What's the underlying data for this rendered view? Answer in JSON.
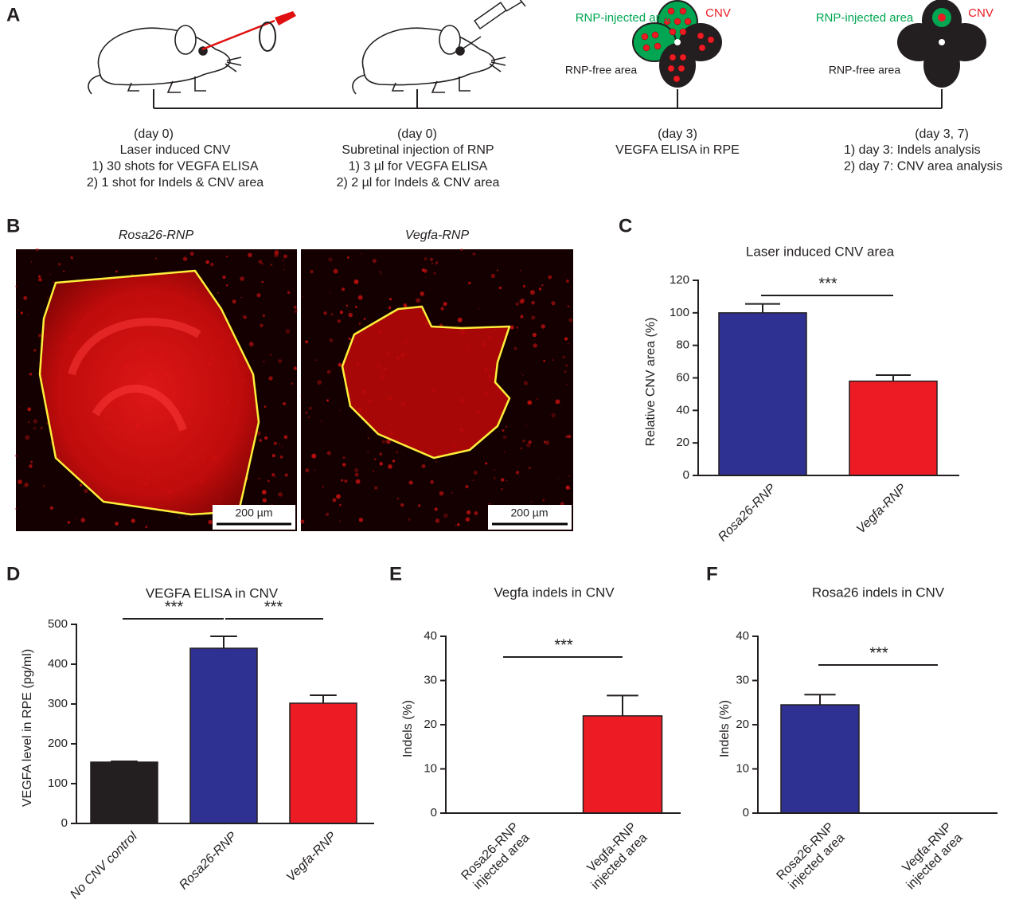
{
  "panel_labels": [
    "A",
    "B",
    "C",
    "D",
    "E",
    "F"
  ],
  "timeline": {
    "steps": [
      {
        "day": "(day 0)",
        "lines": [
          "Laser induced CNV",
          "1) 30 shots for VEGFA ELISA",
          "2) 1 shot for Indels & CNV area"
        ]
      },
      {
        "day": "(day 0)",
        "lines": [
          "Subretinal injection of RNP",
          "1) 3 µl for VEGFA ELISA",
          "2) 2 µl for Indels & CNV area"
        ]
      },
      {
        "day": "(day 3)",
        "lines": [
          "VEGFA ELISA in RPE"
        ]
      },
      {
        "day": "(day 3, 7)",
        "lines": [
          "1) day 3: Indels analysis",
          "2) day 7: CNV area analysis"
        ]
      }
    ],
    "diagrams": [
      {
        "injected": "RNP-injected area",
        "cnv": "CNV",
        "free": "RNP-free area"
      },
      {
        "injected": "RNP-injected area",
        "cnv": "CNV",
        "free": "RNP-free area"
      }
    ]
  },
  "images": [
    {
      "title": "Rosa26-RNP",
      "scale_bar": "200 µm"
    },
    {
      "title": "Vegfa-RNP",
      "scale_bar": "200 µm"
    }
  ],
  "chart_data": [
    {
      "type": "bar",
      "title": "Laser induced CNV area",
      "ylabel": "Relative CNV area (%)",
      "categories": [
        "Rosa26-RNP",
        "Vegfa-RNP"
      ],
      "values": [
        100,
        58
      ],
      "errors": [
        5.5,
        3.7
      ],
      "colors": [
        "#2e3192",
        "#ed1c24"
      ],
      "ylim": [
        0,
        120
      ],
      "yticks": [
        0,
        20,
        40,
        60,
        80,
        100,
        120
      ],
      "annotations": [
        {
          "label": "***",
          "between": [
            "Rosa26-RNP",
            "Vegfa-RNP"
          ]
        }
      ]
    },
    {
      "type": "bar",
      "title": "VEGFA ELISA in CNV",
      "ylabel": "VEGFA level in RPE (pg/ml)",
      "categories": [
        "No CNV control",
        "Rosa26-RNP",
        "Vegfa-RNP"
      ],
      "values": [
        154,
        440,
        302
      ],
      "errors": [
        2,
        30,
        20
      ],
      "colors": [
        "#231f20",
        "#2e3192",
        "#ed1c24"
      ],
      "ylim": [
        0,
        500
      ],
      "yticks": [
        0,
        100,
        200,
        300,
        400,
        500
      ],
      "annotations": [
        {
          "label": "***",
          "between": [
            "No CNV control",
            "Rosa26-RNP"
          ]
        },
        {
          "label": "***",
          "between": [
            "Rosa26-RNP",
            "Vegfa-RNP"
          ]
        }
      ]
    },
    {
      "type": "bar",
      "title": "Vegfa indels in CNV",
      "ylabel": "Indels (%)",
      "categories": [
        "Rosa26-RNP injected area",
        "Vegfa-RNP injected area"
      ],
      "values": [
        0,
        22
      ],
      "errors": [
        0,
        4.6
      ],
      "colors": [
        "#2e3192",
        "#ed1c24"
      ],
      "ylim": [
        0,
        40
      ],
      "yticks": [
        0,
        10,
        20,
        30,
        40
      ],
      "annotations": [
        {
          "label": "***",
          "between": [
            "Rosa26-RNP injected area",
            "Vegfa-RNP injected area"
          ]
        }
      ]
    },
    {
      "type": "bar",
      "title": "Rosa26 indels in CNV",
      "ylabel": "Indels (%)",
      "categories": [
        "Rosa26-RNP injected area",
        "Vegfa-RNP injected area"
      ],
      "values": [
        24.5,
        0
      ],
      "errors": [
        2.3,
        0
      ],
      "colors": [
        "#2e3192",
        "#ed1c24"
      ],
      "ylim": [
        0,
        40
      ],
      "yticks": [
        0,
        10,
        20,
        30,
        40
      ],
      "annotations": [
        {
          "label": "***",
          "between": [
            "Rosa26-RNP injected area",
            "Vegfa-RNP injected area"
          ]
        }
      ]
    }
  ]
}
